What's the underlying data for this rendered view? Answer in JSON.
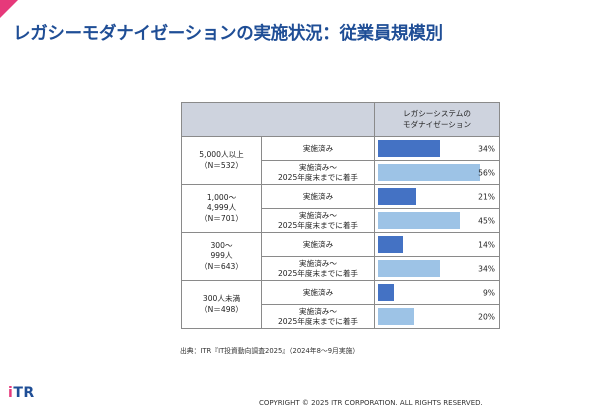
{
  "page": {
    "title": "レガシーモダナイゼーションの実施状況：従業員規模別",
    "source": "出典：ITR『IT投資動向調査2025』（2024年8〜9月実施）",
    "logo_text": "iTR",
    "copyright": "COPYRIGHT © 2025 ITR CORPORATION. ALL RIGHTS RESERVED."
  },
  "colors": {
    "accent": "#e6397a",
    "brand": "#1f4e96",
    "bar_done": "#4472c4",
    "bar_planned": "#9dc3e6",
    "header_bg": "#ced3de"
  },
  "chart_data": {
    "type": "bar",
    "orientation": "horizontal",
    "column_header": "レガシーシステムの\nモダナイゼーション",
    "xlim": [
      0,
      60
    ],
    "unit": "%",
    "groups": [
      {
        "label": "5,000人以上\n（N＝532）",
        "rows": [
          {
            "status": "実施済み",
            "value": 34,
            "label": "34%"
          },
          {
            "status": "実施済み～\n2025年度末までに着手",
            "value": 56,
            "label": "56%"
          }
        ]
      },
      {
        "label": "1,000～\n4,999人\n（N＝701）",
        "rows": [
          {
            "status": "実施済み",
            "value": 21,
            "label": "21%"
          },
          {
            "status": "実施済み～\n2025年度末までに着手",
            "value": 45,
            "label": "45%"
          }
        ]
      },
      {
        "label": "300～\n999人\n（N＝643）",
        "rows": [
          {
            "status": "実施済み",
            "value": 14,
            "label": "14%"
          },
          {
            "status": "実施済み～\n2025年度末までに着手",
            "value": 34,
            "label": "34%"
          }
        ]
      },
      {
        "label": "300人未満\n（N＝498）",
        "rows": [
          {
            "status": "実施済み",
            "value": 9,
            "label": "9%"
          },
          {
            "status": "実施済み～\n2025年度末までに着手",
            "value": 20,
            "label": "20%"
          }
        ]
      }
    ]
  }
}
